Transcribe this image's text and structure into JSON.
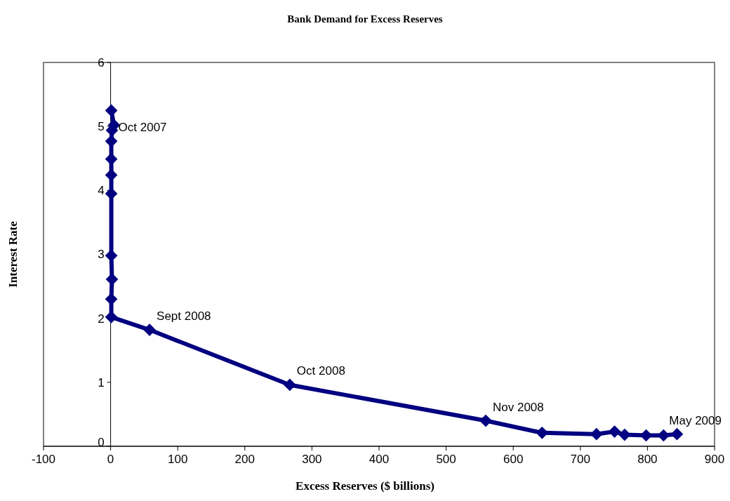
{
  "chart_data": {
    "type": "line",
    "title": "Bank Demand for Excess Reserves",
    "xlabel": "Excess Reserves ($ billions)",
    "ylabel": "Interest Rate",
    "xlim": [
      -100,
      900
    ],
    "xticks": [
      -100,
      0,
      100,
      200,
      300,
      400,
      500,
      600,
      700,
      800,
      900
    ],
    "ylim": [
      0,
      6
    ],
    "yticks": [
      0,
      1,
      2,
      3,
      4,
      5,
      6
    ],
    "marker": "diamond",
    "line_style": "solid",
    "series": [
      {
        "color": "#000080",
        "x": [
          1,
          5,
          2,
          1,
          1,
          1,
          1,
          1,
          2,
          1,
          1,
          58,
          267,
          559,
          643,
          724,
          751,
          766,
          798,
          824,
          844
        ],
        "values": [
          5.25,
          5.02,
          4.94,
          4.77,
          4.49,
          4.24,
          3.95,
          2.98,
          2.61,
          2.3,
          2.02,
          1.82,
          0.96,
          0.4,
          0.21,
          0.19,
          0.23,
          0.18,
          0.17,
          0.17,
          0.19
        ]
      }
    ],
    "annotations": [
      {
        "text": "Oct 2007",
        "x": 1,
        "y": 4.77
      },
      {
        "text": "Sept 2008",
        "x": 58,
        "y": 1.82
      },
      {
        "text": "Oct 2008",
        "x": 267,
        "y": 0.96
      },
      {
        "text": "Nov 2008",
        "x": 559,
        "y": 0.4
      },
      {
        "text": "May 2009",
        "x": 844,
        "y": 0.19
      }
    ]
  }
}
